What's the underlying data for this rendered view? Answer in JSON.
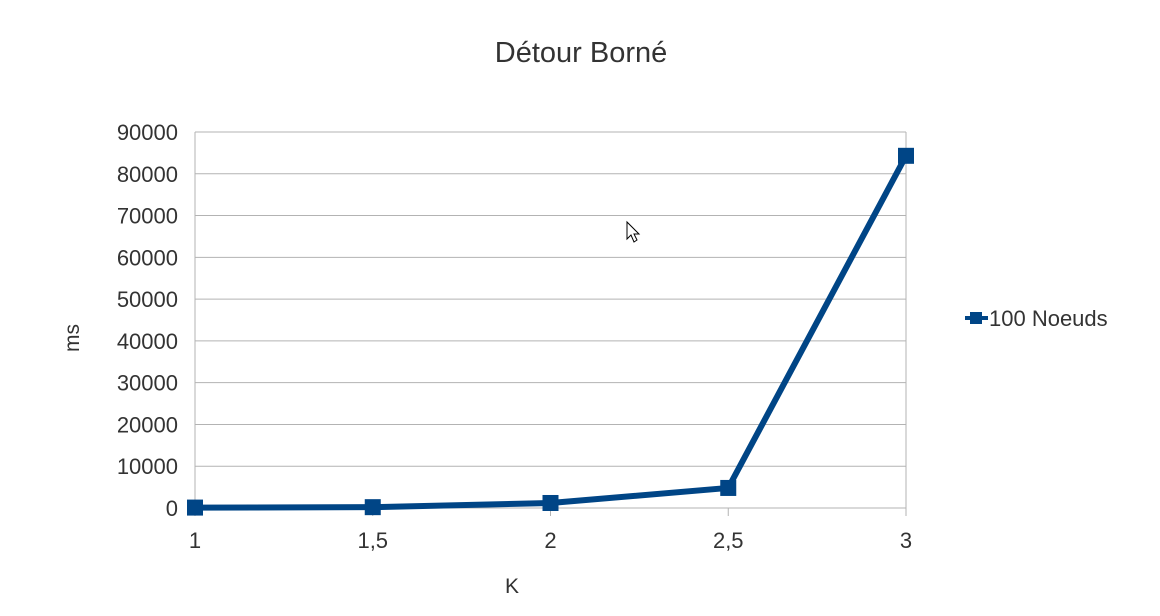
{
  "chart_data": {
    "type": "line",
    "title": "Détour Borné",
    "xlabel": "K",
    "ylabel": "ms",
    "categories": [
      "1",
      "1,5",
      "2",
      "2,5",
      "3"
    ],
    "series": [
      {
        "name": "100 Noeuds",
        "color": "#004586",
        "marker": "square",
        "values": [
          100,
          200,
          1200,
          4800,
          84300
        ]
      }
    ],
    "yticks": [
      "0",
      "10000",
      "20000",
      "30000",
      "40000",
      "50000",
      "60000",
      "70000",
      "80000",
      "90000"
    ],
    "ylim": [
      0,
      90000
    ],
    "grid": true,
    "legend_position": "right",
    "colors": {
      "grid": "#b3b3b3",
      "text": "#333333"
    }
  }
}
